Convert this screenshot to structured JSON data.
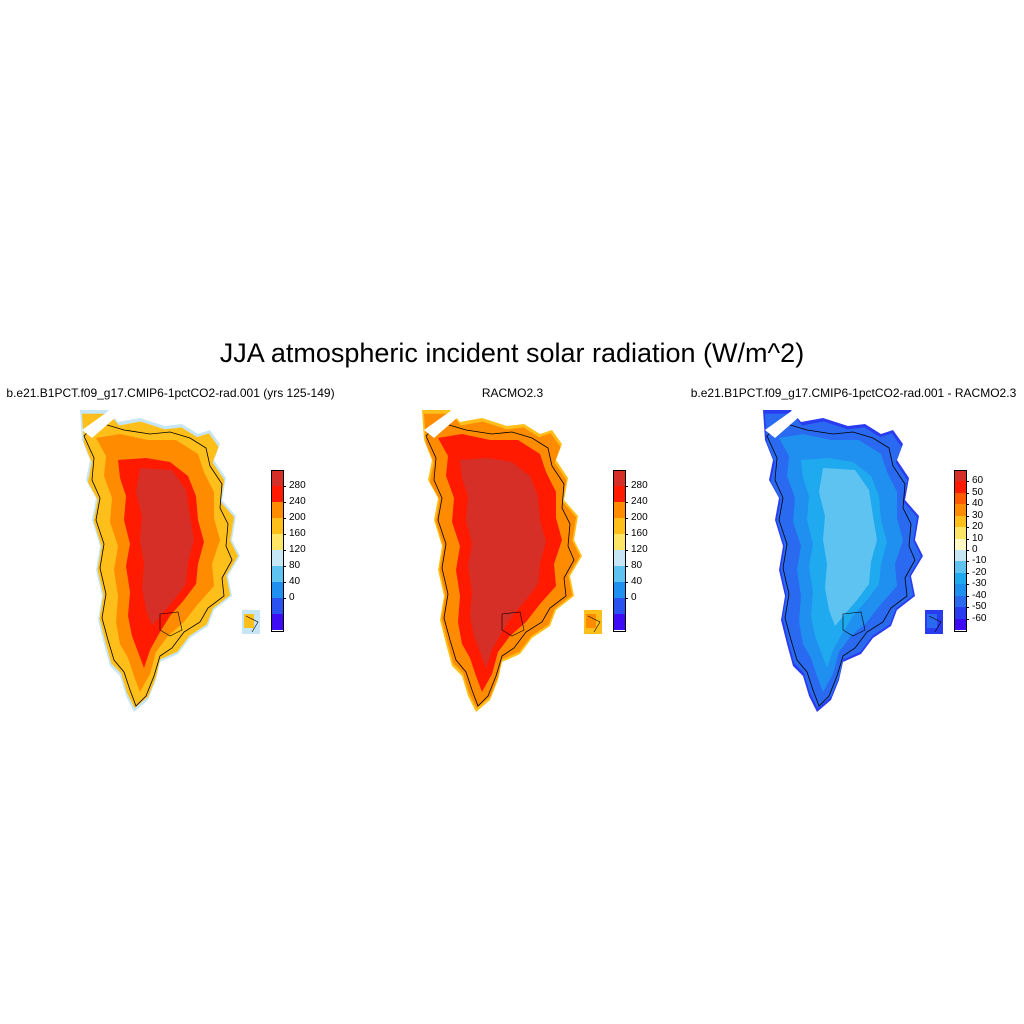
{
  "title": "JJA atmospheric incident solar radiation (W/m^2)",
  "panels": [
    {
      "title": "b.e21.B1PCT.f09_g17.CMIP6-1pctCO2-rad.001 (yrs 125-149)",
      "colorbar": {
        "labels": [
          "280",
          "240",
          "200",
          "160",
          "120",
          "80",
          "40",
          "0"
        ],
        "colors": [
          "#d62f27",
          "#ff1a00",
          "#ff8c00",
          "#ffbf1a",
          "#ffe566",
          "#c6e6f5",
          "#5ec3f0",
          "#1f8ff0",
          "#2a52f0",
          "#3d0cf5"
        ]
      },
      "field": {
        "interior": "#d62f27",
        "inner_ring": "#ff1a00",
        "outer_ring": "#ff8c00",
        "edge": "#ffbf1a",
        "fringe": "#c6e6f5"
      }
    },
    {
      "title": "RACMO2.3",
      "colorbar": {
        "labels": [
          "280",
          "240",
          "200",
          "160",
          "120",
          "80",
          "40",
          "0"
        ],
        "colors": [
          "#d62f27",
          "#ff1a00",
          "#ff8c00",
          "#ffbf1a",
          "#ffe566",
          "#c6e6f5",
          "#5ec3f0",
          "#1f8ff0",
          "#2a52f0",
          "#3d0cf5"
        ]
      },
      "field": {
        "interior": "#d62f27",
        "inner_ring": "#d62f27",
        "outer_ring": "#ff1a00",
        "edge": "#ff8c00",
        "fringe": "#ffbf1a"
      }
    },
    {
      "title": "b.e21.B1PCT.f09_g17.CMIP6-1pctCO2-rad.001 - RACMO2.3",
      "colorbar": {
        "labels": [
          "60",
          "50",
          "40",
          "30",
          "20",
          "10",
          "0",
          "-10",
          "-20",
          "-30",
          "-40",
          "-50",
          "-60"
        ],
        "colors": [
          "#d62f27",
          "#ff1a00",
          "#ff5a00",
          "#ff8c00",
          "#ffbf1a",
          "#ffe566",
          "#fff9c4",
          "#c6e6f5",
          "#5ec3f0",
          "#1faaf0",
          "#1f8ff0",
          "#2a6af0",
          "#2a3cf0",
          "#3d0cf5"
        ]
      },
      "field": {
        "interior": "#5ec3f0",
        "inner_ring": "#1faaf0",
        "outer_ring": "#1f8ff0",
        "edge": "#2a6af0",
        "fringe": "#2a3cf0"
      }
    }
  ]
}
